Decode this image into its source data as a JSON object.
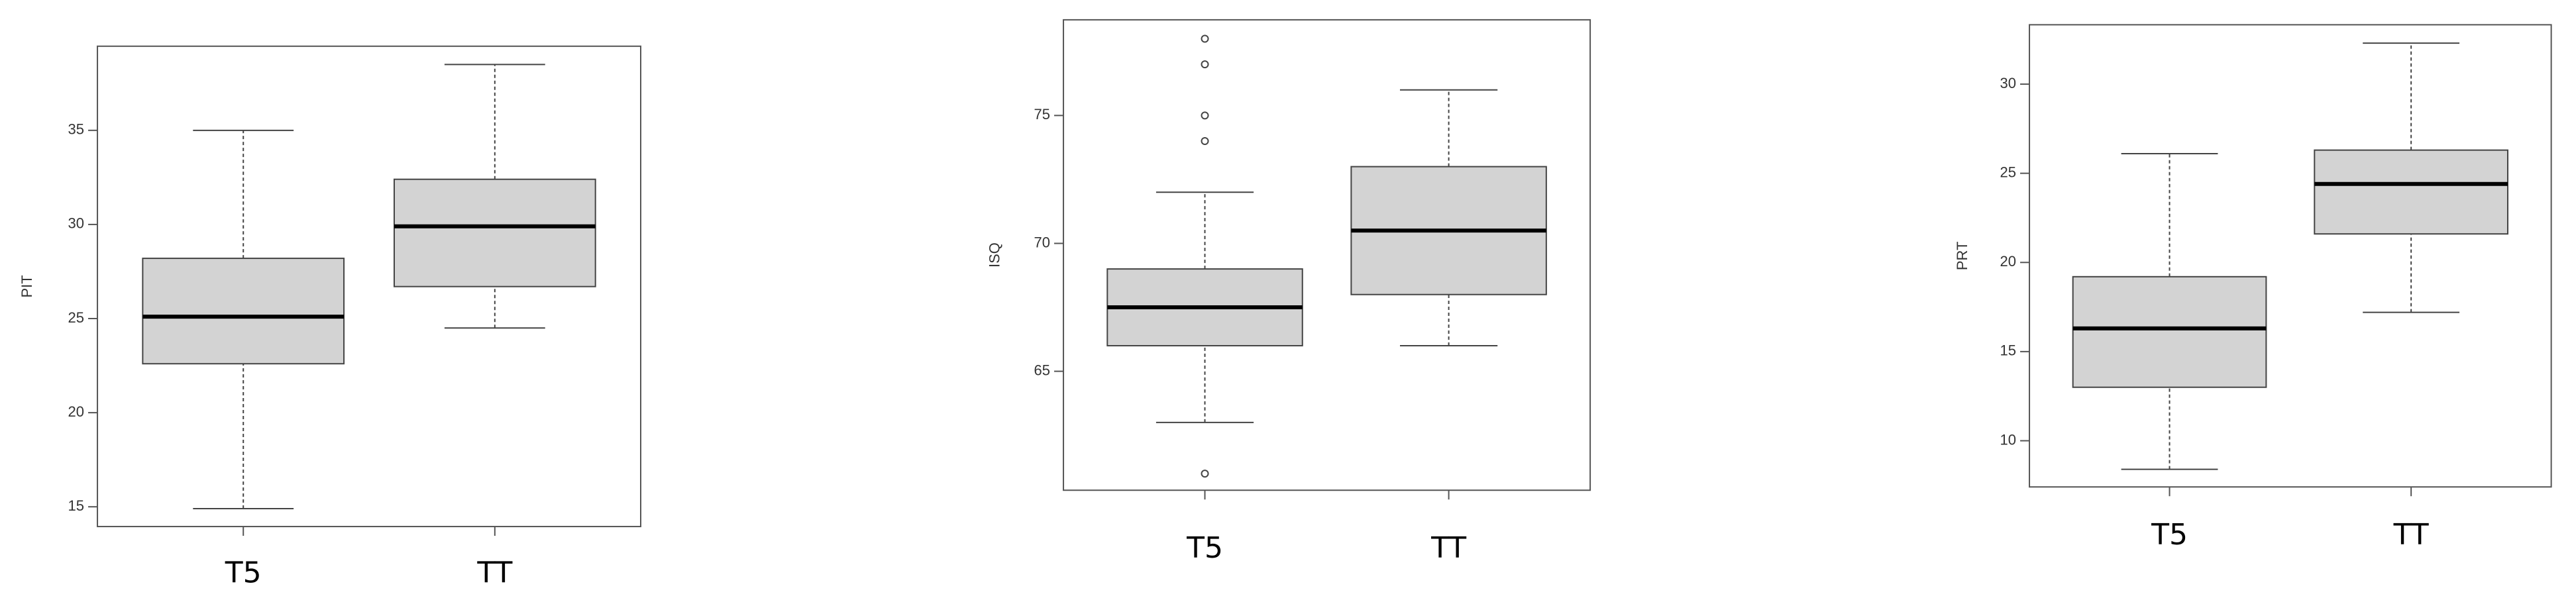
{
  "chart_data": [
    {
      "type": "box",
      "y_label": "PIT",
      "categories": [
        "T5",
        "TT"
      ],
      "color": "#d3d3d3",
      "boxes": [
        {
          "low": 14.9,
          "q1": 22.6,
          "median": 25.1,
          "q3": 28.2,
          "high": 35,
          "outliers": []
        },
        {
          "low": 24.5,
          "q1": 26.7,
          "median": 29.9,
          "q3": 32.4,
          "high": 38.5,
          "outliers": []
        }
      ],
      "ylim": [
        13.95,
        39.47
      ],
      "yticks": [
        15,
        20,
        25,
        30,
        35
      ]
    },
    {
      "type": "box",
      "y_label": "ISQ",
      "categories": [
        "T5",
        "TT"
      ],
      "color": "#d3d3d3",
      "boxes": [
        {
          "low": 63,
          "q1": 66,
          "median": 67.5,
          "q3": 69,
          "high": 72,
          "outliers": [
            61,
            74,
            75,
            77,
            78
          ]
        },
        {
          "low": 66,
          "q1": 68,
          "median": 70.5,
          "q3": 73,
          "high": 76,
          "outliers": []
        }
      ],
      "ylim": [
        60.35,
        78.74
      ],
      "yticks": [
        65,
        70,
        75
      ]
    },
    {
      "type": "box",
      "y_label": "PRT",
      "categories": [
        "T5",
        "TT"
      ],
      "color": "#d3d3d3",
      "boxes": [
        {
          "low": 8.4,
          "q1": 13,
          "median": 16.3,
          "q3": 19.2,
          "high": 26.1,
          "outliers": []
        },
        {
          "low": 17.2,
          "q1": 21.6,
          "median": 24.4,
          "q3": 26.3,
          "high": 32.3,
          "outliers": []
        }
      ],
      "ylim": [
        7.41,
        33.33
      ],
      "yticks": [
        10,
        15,
        20,
        25,
        30
      ]
    }
  ]
}
